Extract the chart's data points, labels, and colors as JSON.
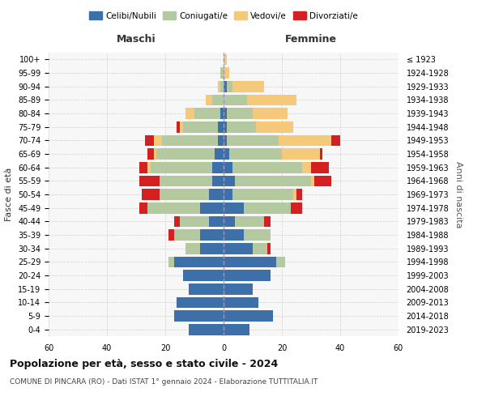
{
  "age_groups": [
    "0-4",
    "5-9",
    "10-14",
    "15-19",
    "20-24",
    "25-29",
    "30-34",
    "35-39",
    "40-44",
    "45-49",
    "50-54",
    "55-59",
    "60-64",
    "65-69",
    "70-74",
    "75-79",
    "80-84",
    "85-89",
    "90-94",
    "95-99",
    "100+"
  ],
  "birth_years": [
    "2019-2023",
    "2014-2018",
    "2009-2013",
    "2004-2008",
    "1999-2003",
    "1994-1998",
    "1989-1993",
    "1984-1988",
    "1979-1983",
    "1974-1978",
    "1969-1973",
    "1964-1968",
    "1959-1963",
    "1954-1958",
    "1949-1953",
    "1944-1948",
    "1939-1943",
    "1934-1938",
    "1929-1933",
    "1924-1928",
    "≤ 1923"
  ],
  "colors": {
    "celibi": "#3d6fa8",
    "coniugati": "#b5c9a0",
    "vedovi": "#f5c97a",
    "divorziati": "#d42020"
  },
  "maschi": {
    "celibi": [
      12,
      17,
      16,
      12,
      14,
      17,
      8,
      8,
      5,
      8,
      5,
      4,
      4,
      3,
      2,
      2,
      1,
      0,
      0,
      0,
      0
    ],
    "coniugati": [
      0,
      0,
      0,
      0,
      0,
      2,
      5,
      9,
      10,
      18,
      17,
      18,
      21,
      20,
      19,
      12,
      9,
      4,
      1,
      1,
      0
    ],
    "vedovi": [
      0,
      0,
      0,
      0,
      0,
      0,
      0,
      0,
      0,
      0,
      0,
      0,
      1,
      1,
      3,
      1,
      3,
      2,
      1,
      0,
      0
    ],
    "divorziati": [
      0,
      0,
      0,
      0,
      0,
      0,
      0,
      2,
      2,
      3,
      6,
      7,
      3,
      2,
      3,
      1,
      0,
      0,
      0,
      0,
      0
    ]
  },
  "femmine": {
    "celibi": [
      9,
      17,
      12,
      10,
      16,
      18,
      10,
      7,
      4,
      7,
      3,
      4,
      3,
      2,
      1,
      1,
      1,
      0,
      1,
      0,
      0
    ],
    "coniugati": [
      0,
      0,
      0,
      0,
      0,
      3,
      5,
      9,
      10,
      16,
      21,
      26,
      24,
      18,
      18,
      10,
      9,
      8,
      2,
      0,
      0
    ],
    "vedovi": [
      0,
      0,
      0,
      0,
      0,
      0,
      0,
      0,
      0,
      0,
      1,
      1,
      3,
      13,
      18,
      13,
      12,
      17,
      11,
      2,
      1
    ],
    "divorziati": [
      0,
      0,
      0,
      0,
      0,
      0,
      1,
      0,
      2,
      4,
      2,
      6,
      6,
      1,
      3,
      0,
      0,
      0,
      0,
      0,
      0
    ]
  },
  "title": "Popolazione per età, sesso e stato civile - 2024",
  "subtitle": "COMUNE DI PINCARA (RO) - Dati ISTAT 1° gennaio 2024 - Elaborazione TUTTITALIA.IT",
  "xlabel_maschi": "Maschi",
  "xlabel_femmine": "Femmine",
  "ylabel_left": "Fasce di età",
  "ylabel_right": "Anni di nascita",
  "xlim": 60,
  "legend_labels": [
    "Celibi/Nubili",
    "Coniugati/e",
    "Vedovi/e",
    "Divorziati/e"
  ],
  "background_color": "#ffffff",
  "plot_bg_color": "#f7f7f7",
  "grid_color": "#cccccc"
}
